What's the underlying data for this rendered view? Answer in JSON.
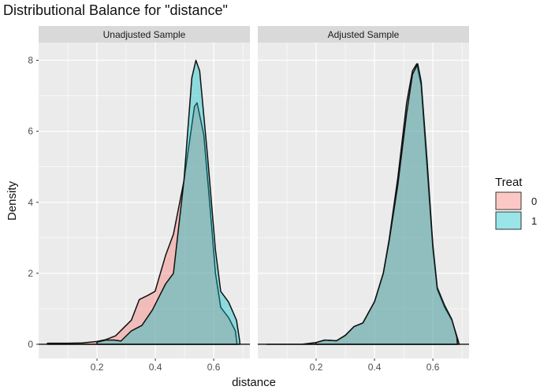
{
  "chart_data": {
    "type": "area",
    "title": "Distributional Balance for \"distance\"",
    "xlabel": "distance",
    "ylabel": "Density",
    "xlim": [
      0.0,
      0.724
    ],
    "ylim": [
      -0.4,
      8.5
    ],
    "x_ticks": [
      0.2,
      0.4,
      0.6
    ],
    "y_ticks": [
      0,
      2,
      4,
      6,
      8
    ],
    "grid": true,
    "legend": {
      "title": "Treat",
      "placement": "right",
      "entries": [
        "0",
        "1"
      ]
    },
    "colors": {
      "0": "#F8766D",
      "1": "#00BFC4"
    },
    "panels": [
      {
        "label": "Unadjusted Sample",
        "series": [
          {
            "name": "0",
            "x": [
              0.03,
              0.1,
              0.15,
              0.2,
              0.23,
              0.264,
              0.318,
              0.345,
              0.372,
              0.399,
              0.435,
              0.462,
              0.498,
              0.534,
              0.543,
              0.566,
              0.588,
              0.606,
              0.624,
              0.651,
              0.674,
              0.68
            ],
            "y": [
              0.03,
              0.03,
              0.04,
              0.08,
              0.13,
              0.24,
              0.68,
              1.26,
              1.37,
              1.49,
              2.5,
              3.1,
              4.6,
              6.7,
              6.8,
              5.9,
              3.8,
              2.0,
              1.04,
              0.75,
              0.38,
              0
            ]
          },
          {
            "name": "1",
            "x": [
              0.2,
              0.23,
              0.26,
              0.282,
              0.318,
              0.354,
              0.39,
              0.435,
              0.462,
              0.498,
              0.525,
              0.539,
              0.552,
              0.579,
              0.606,
              0.624,
              0.651,
              0.678,
              0.689,
              0.69
            ],
            "y": [
              0.06,
              0.12,
              0.12,
              0.09,
              0.38,
              0.53,
              0.97,
              1.7,
              2.0,
              4.6,
              7.5,
              8.0,
              7.7,
              5.3,
              2.66,
              1.49,
              1.19,
              0.68,
              0.1,
              0
            ]
          }
        ]
      },
      {
        "label": "Adjusted Sample",
        "series": [
          {
            "name": "0",
            "x": [
              0.03,
              0.15,
              0.2,
              0.23,
              0.27,
              0.3,
              0.33,
              0.36,
              0.4,
              0.43,
              0.45,
              0.48,
              0.51,
              0.53,
              0.545,
              0.56,
              0.58,
              0.6,
              0.615,
              0.64,
              0.665,
              0.685,
              0.69
            ],
            "y": [
              0,
              0,
              0.05,
              0.12,
              0.1,
              0.25,
              0.5,
              0.6,
              1.2,
              2.0,
              2.95,
              4.7,
              6.8,
              7.7,
              7.9,
              7.3,
              5.0,
              2.7,
              1.55,
              1.05,
              0.68,
              0.15,
              0
            ]
          },
          {
            "name": "1",
            "x": [
              0.2,
              0.23,
              0.27,
              0.3,
              0.33,
              0.36,
              0.4,
              0.43,
              0.45,
              0.48,
              0.51,
              0.53,
              0.548,
              0.56,
              0.58,
              0.6,
              0.615,
              0.64,
              0.665,
              0.682,
              0.684
            ],
            "y": [
              0.05,
              0.12,
              0.1,
              0.25,
              0.5,
              0.6,
              1.2,
              2.0,
              2.9,
              4.5,
              6.5,
              7.6,
              7.9,
              7.4,
              5.2,
              2.8,
              1.6,
              1.1,
              0.7,
              0.2,
              0
            ]
          }
        ]
      }
    ]
  }
}
